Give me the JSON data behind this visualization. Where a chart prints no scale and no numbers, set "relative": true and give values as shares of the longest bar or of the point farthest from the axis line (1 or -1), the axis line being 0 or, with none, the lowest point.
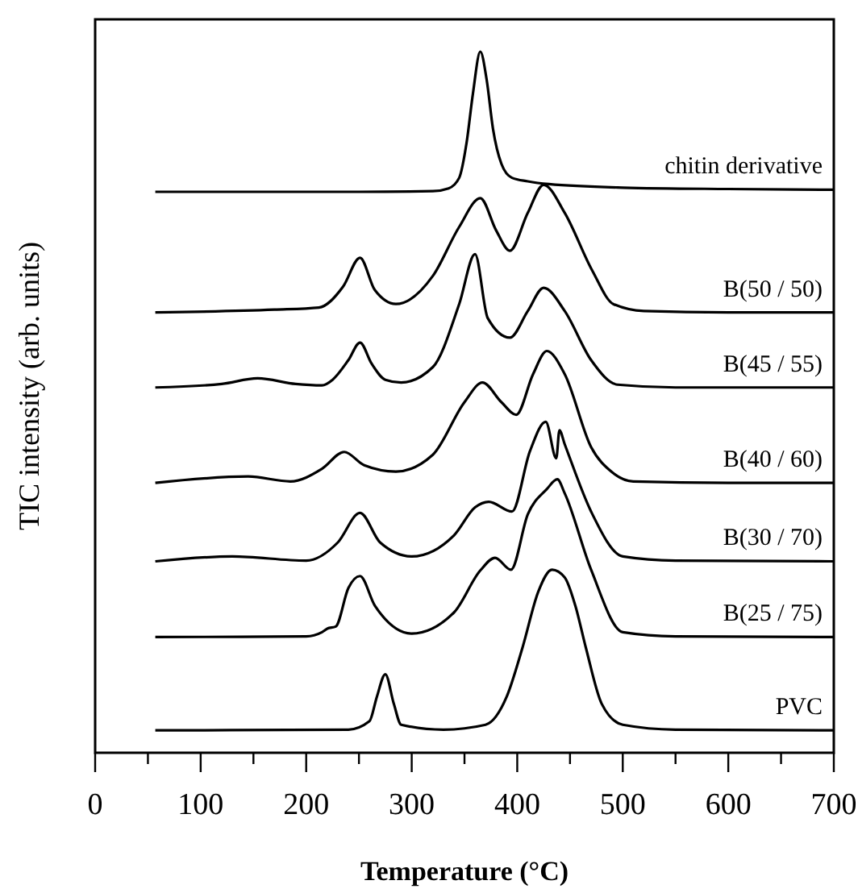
{
  "chart_data": {
    "type": "line",
    "relative": true,
    "xlabel": "Temperature (°C)",
    "ylabel": "TIC intensity (arb. units)",
    "xlim": [
      0,
      700
    ],
    "xticks": [
      0,
      {
        "value": 50,
        "label": null
      },
      100,
      {
        "value": 150,
        "label": null
      },
      200,
      {
        "value": 250,
        "label": null
      },
      300,
      {
        "value": 350,
        "label": null
      },
      400,
      {
        "value": 450,
        "label": null
      },
      500,
      {
        "value": 550,
        "label": null
      },
      600,
      {
        "value": 650,
        "label": null
      },
      700
    ],
    "tick_labels": "x",
    "legend": false,
    "grid": false,
    "marker": "none",
    "line_style": "solid",
    "series": [
      {
        "name": "chitin derivative",
        "color": "#000000",
        "x": [
          57,
          250,
          320,
          335,
          345,
          352,
          358,
          365,
          371,
          377,
          385,
          395,
          410,
          430,
          500,
          600,
          700
        ],
        "values": [
          0.8,
          0.8,
          0.801,
          0.805,
          0.82,
          0.87,
          0.94,
          1.0,
          0.96,
          0.89,
          0.84,
          0.82,
          0.815,
          0.811,
          0.806,
          0.804,
          0.803
        ]
      },
      {
        "name": "B(50 / 50)",
        "color": "#000000",
        "x": [
          57,
          170,
          212,
          235,
          251,
          265,
          285,
          320,
          345,
          365,
          380,
          393,
          410,
          425,
          445,
          471,
          491,
          520,
          600,
          700
        ],
        "values": [
          0.628,
          0.632,
          0.635,
          0.665,
          0.706,
          0.66,
          0.64,
          0.68,
          0.75,
          0.791,
          0.745,
          0.716,
          0.77,
          0.81,
          0.77,
          0.688,
          0.64,
          0.63,
          0.628,
          0.628
        ]
      },
      {
        "name": "B(45 / 55)",
        "color": "#000000",
        "x": [
          57,
          120,
          154,
          190,
          215,
          225,
          240,
          251,
          262,
          275,
          290,
          320,
          345,
          360,
          372,
          393,
          410,
          425,
          445,
          470,
          495,
          550,
          700
        ],
        "values": [
          0.521,
          0.526,
          0.534,
          0.526,
          0.524,
          0.532,
          0.56,
          0.585,
          0.555,
          0.532,
          0.528,
          0.55,
          0.64,
          0.711,
          0.62,
          0.592,
          0.63,
          0.663,
          0.63,
          0.56,
          0.525,
          0.521,
          0.521
        ]
      },
      {
        "name": "B(40 / 60)",
        "color": "#000000",
        "x": [
          57,
          145,
          185,
          215,
          236,
          255,
          285,
          320,
          350,
          367,
          385,
          399,
          415,
          428,
          445,
          470,
          490,
          510,
          600,
          700
        ],
        "values": [
          0.385,
          0.394,
          0.387,
          0.405,
          0.429,
          0.41,
          0.401,
          0.425,
          0.5,
          0.528,
          0.5,
          0.482,
          0.54,
          0.573,
          0.54,
          0.436,
          0.4,
          0.387,
          0.385,
          0.385
        ]
      },
      {
        "name": "B(30 / 70)",
        "color": "#000000",
        "x": [
          57,
          130,
          200,
          230,
          251,
          270,
          300,
          340,
          360,
          373,
          395,
          412,
          427,
          437,
          440,
          445,
          470,
          500,
          550,
          700
        ],
        "values": [
          0.273,
          0.28,
          0.274,
          0.3,
          0.342,
          0.3,
          0.28,
          0.31,
          0.35,
          0.358,
          0.344,
          0.43,
          0.472,
          0.42,
          0.46,
          0.44,
          0.344,
          0.28,
          0.274,
          0.273
        ]
      },
      {
        "name": "B(25 / 75)",
        "color": "#000000",
        "x": [
          57,
          200,
          215,
          220,
          228,
          240,
          251,
          265,
          300,
          340,
          365,
          379,
          394,
          410,
          428,
          438,
          445,
          470,
          500,
          550,
          700
        ],
        "values": [
          0.165,
          0.166,
          0.172,
          0.177,
          0.18,
          0.235,
          0.252,
          0.21,
          0.17,
          0.2,
          0.26,
          0.278,
          0.261,
          0.34,
          0.376,
          0.39,
          0.37,
          0.261,
          0.172,
          0.166,
          0.165
        ]
      },
      {
        "name": "PVC",
        "color": "#000000",
        "x": [
          57,
          240,
          260,
          267,
          275,
          283,
          290,
          330,
          370,
          390,
          405,
          420,
          433,
          445,
          455,
          465,
          480,
          500,
          550,
          700
        ],
        "values": [
          0.032,
          0.033,
          0.045,
          0.08,
          0.112,
          0.07,
          0.04,
          0.033,
          0.04,
          0.08,
          0.15,
          0.23,
          0.261,
          0.25,
          0.21,
          0.15,
          0.07,
          0.04,
          0.033,
          0.032
        ]
      }
    ]
  }
}
